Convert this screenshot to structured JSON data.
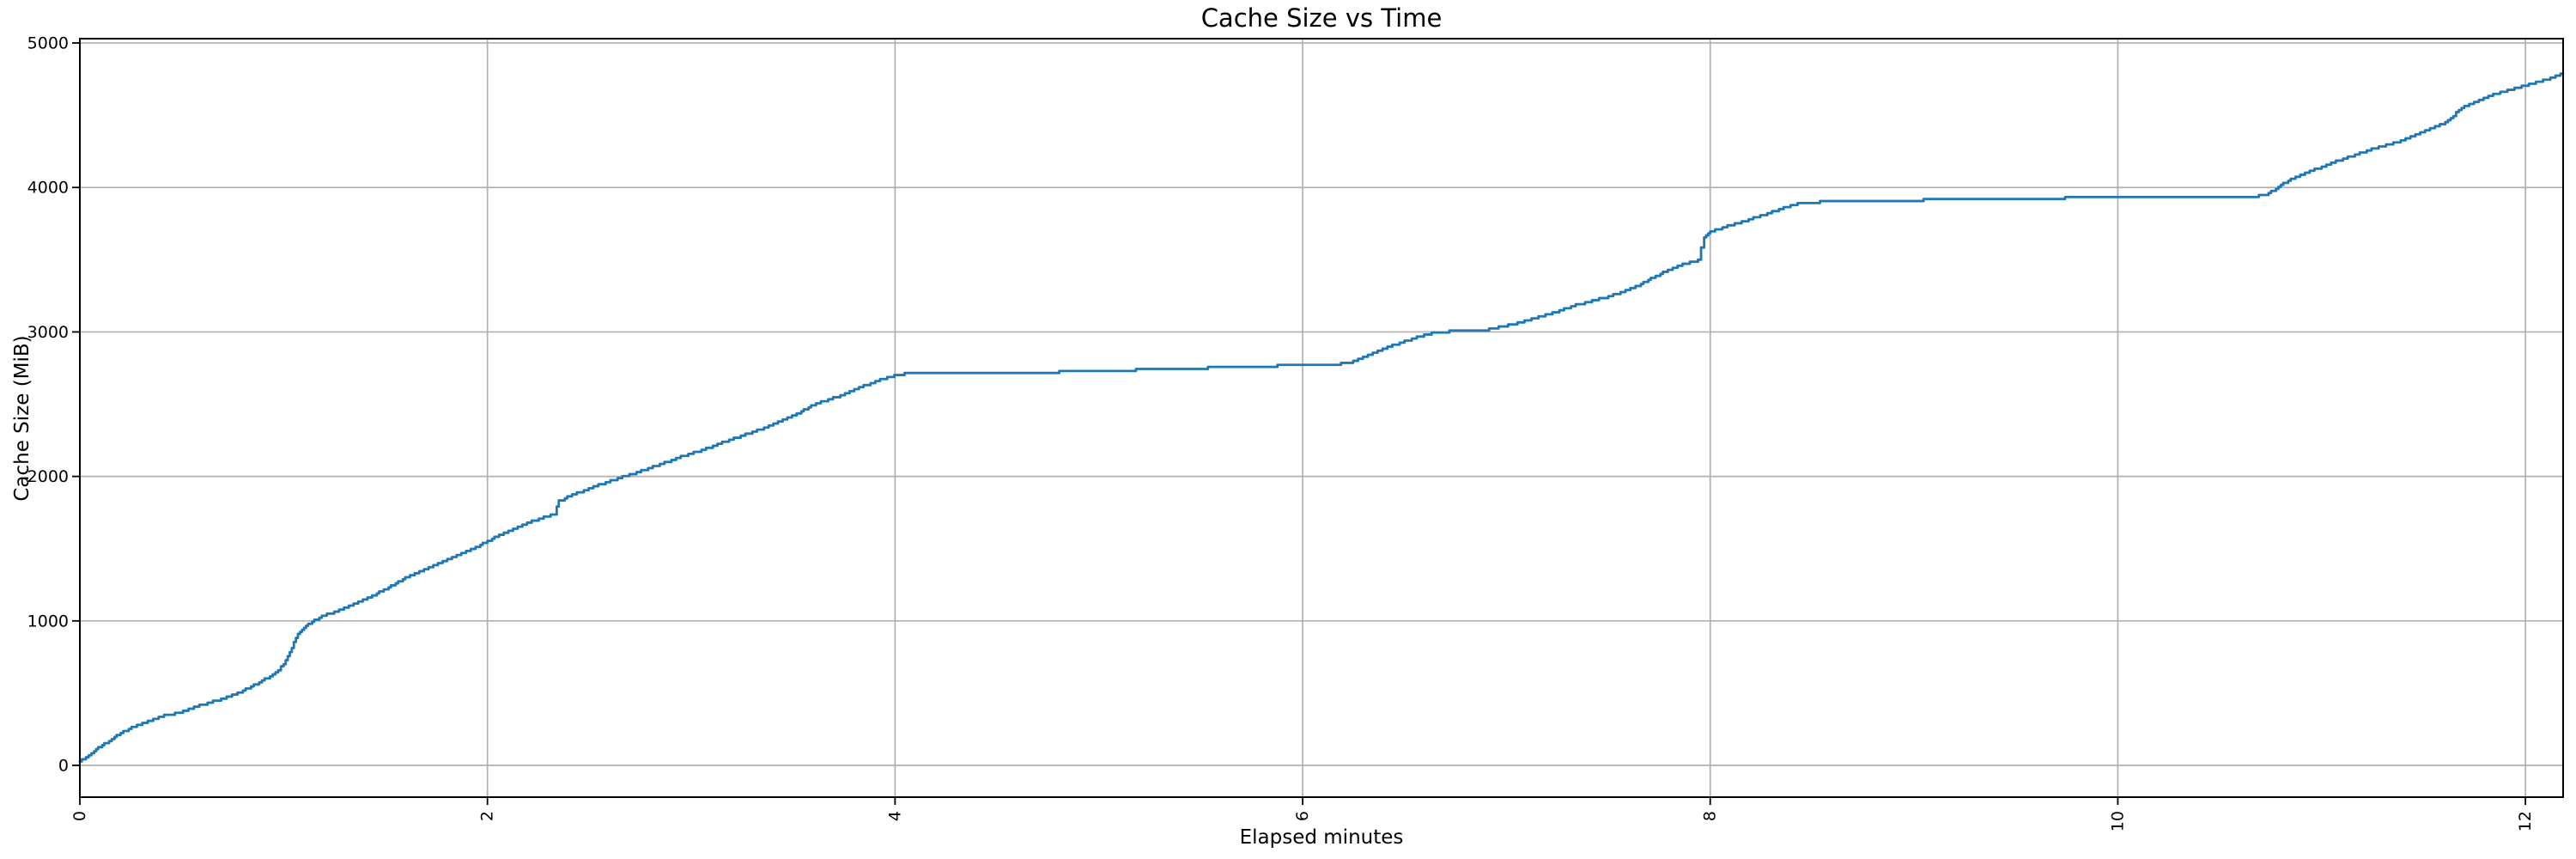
{
  "figure": {
    "background_color": "#ffffff",
    "text_color": "#000000"
  },
  "chart_data": {
    "type": "line",
    "title": "Cache Size vs Time",
    "xlabel": "Elapsed minutes",
    "ylabel": "Cache Size (MiB)",
    "xlim": [
      0,
      12.185
    ],
    "ylim": [
      -220,
      5030
    ],
    "x_ticks": [
      0,
      2,
      4,
      6,
      8,
      10,
      12
    ],
    "y_ticks": [
      0,
      1000,
      2000,
      3000,
      4000,
      5000
    ],
    "x_tick_rotation": 90,
    "grid": true,
    "grid_color": "#b0b0b0",
    "spine_color": "#000000",
    "line_color": "#1f77b4",
    "line_width": 2.8,
    "legend": "none",
    "series": [
      {
        "name": "cache-size-vs-time",
        "points": [
          [
            0.0,
            25
          ],
          [
            0.03,
            60
          ],
          [
            0.07,
            100
          ],
          [
            0.1,
            130
          ],
          [
            0.13,
            160
          ],
          [
            0.17,
            195
          ],
          [
            0.2,
            222
          ],
          [
            0.24,
            250
          ],
          [
            0.28,
            278
          ],
          [
            0.32,
            300
          ],
          [
            0.36,
            322
          ],
          [
            0.4,
            340
          ],
          [
            0.44,
            352
          ],
          [
            0.48,
            360
          ],
          [
            0.52,
            382
          ],
          [
            0.56,
            400
          ],
          [
            0.6,
            420
          ],
          [
            0.64,
            438
          ],
          [
            0.68,
            452
          ],
          [
            0.72,
            470
          ],
          [
            0.76,
            492
          ],
          [
            0.8,
            520
          ],
          [
            0.84,
            548
          ],
          [
            0.88,
            575
          ],
          [
            0.92,
            605
          ],
          [
            0.96,
            640
          ],
          [
            1.0,
            700
          ],
          [
            1.03,
            780
          ],
          [
            1.05,
            850
          ],
          [
            1.07,
            905
          ],
          [
            1.09,
            940
          ],
          [
            1.11,
            962
          ],
          [
            1.13,
            985
          ],
          [
            1.15,
            1005
          ],
          [
            1.2,
            1038
          ],
          [
            1.26,
            1068
          ],
          [
            1.32,
            1105
          ],
          [
            1.4,
            1152
          ],
          [
            1.48,
            1205
          ],
          [
            1.55,
            1262
          ],
          [
            1.62,
            1315
          ],
          [
            1.7,
            1360
          ],
          [
            1.78,
            1412
          ],
          [
            1.86,
            1458
          ],
          [
            1.93,
            1502
          ],
          [
            2.0,
            1552
          ],
          [
            2.08,
            1608
          ],
          [
            2.16,
            1658
          ],
          [
            2.24,
            1700
          ],
          [
            2.3,
            1728
          ],
          [
            2.33,
            1742
          ],
          [
            2.35,
            1830
          ],
          [
            2.38,
            1848
          ],
          [
            2.45,
            1890
          ],
          [
            2.52,
            1930
          ],
          [
            2.58,
            1958
          ],
          [
            2.65,
            1990
          ],
          [
            2.72,
            2022
          ],
          [
            2.8,
            2060
          ],
          [
            2.88,
            2100
          ],
          [
            2.96,
            2142
          ],
          [
            3.05,
            2180
          ],
          [
            3.14,
            2228
          ],
          [
            3.22,
            2268
          ],
          [
            3.3,
            2305
          ],
          [
            3.38,
            2350
          ],
          [
            3.46,
            2400
          ],
          [
            3.54,
            2448
          ],
          [
            3.6,
            2495
          ],
          [
            3.66,
            2525
          ],
          [
            3.72,
            2552
          ],
          [
            3.8,
            2600
          ],
          [
            3.88,
            2645
          ],
          [
            3.95,
            2678
          ],
          [
            4.02,
            2705
          ],
          [
            4.06,
            2712
          ],
          [
            4.3,
            2714
          ],
          [
            4.55,
            2716
          ],
          [
            4.7,
            2720
          ],
          [
            4.9,
            2726
          ],
          [
            5.1,
            2734
          ],
          [
            5.3,
            2742
          ],
          [
            5.5,
            2750
          ],
          [
            5.7,
            2758
          ],
          [
            5.9,
            2766
          ],
          [
            6.05,
            2772
          ],
          [
            6.2,
            2780
          ],
          [
            6.26,
            2800
          ],
          [
            6.32,
            2838
          ],
          [
            6.38,
            2872
          ],
          [
            6.44,
            2905
          ],
          [
            6.5,
            2935
          ],
          [
            6.56,
            2962
          ],
          [
            6.62,
            2985
          ],
          [
            6.66,
            2998
          ],
          [
            6.72,
            3003
          ],
          [
            6.8,
            3006
          ],
          [
            6.88,
            3010
          ],
          [
            6.95,
            3028
          ],
          [
            7.02,
            3050
          ],
          [
            7.1,
            3080
          ],
          [
            7.18,
            3112
          ],
          [
            7.26,
            3148
          ],
          [
            7.34,
            3185
          ],
          [
            7.42,
            3215
          ],
          [
            7.5,
            3245
          ],
          [
            7.56,
            3272
          ],
          [
            7.62,
            3305
          ],
          [
            7.66,
            3330
          ],
          [
            7.72,
            3378
          ],
          [
            7.78,
            3420
          ],
          [
            7.84,
            3458
          ],
          [
            7.9,
            3482
          ],
          [
            7.94,
            3495
          ],
          [
            7.97,
            3660
          ],
          [
            8.0,
            3695
          ],
          [
            8.06,
            3722
          ],
          [
            8.12,
            3748
          ],
          [
            8.2,
            3782
          ],
          [
            8.28,
            3818
          ],
          [
            8.36,
            3858
          ],
          [
            8.44,
            3895
          ],
          [
            8.6,
            3902
          ],
          [
            8.8,
            3907
          ],
          [
            9.0,
            3912
          ],
          [
            9.2,
            3917
          ],
          [
            9.4,
            3921
          ],
          [
            9.6,
            3925
          ],
          [
            9.8,
            3928
          ],
          [
            10.0,
            3931
          ],
          [
            10.2,
            3934
          ],
          [
            10.4,
            3936
          ],
          [
            10.55,
            3937
          ],
          [
            10.68,
            3939
          ],
          [
            10.74,
            3958
          ],
          [
            10.8,
            4020
          ],
          [
            10.86,
            4062
          ],
          [
            10.93,
            4105
          ],
          [
            11.0,
            4143
          ],
          [
            11.07,
            4180
          ],
          [
            11.14,
            4215
          ],
          [
            11.21,
            4248
          ],
          [
            11.28,
            4278
          ],
          [
            11.34,
            4300
          ],
          [
            11.4,
            4330
          ],
          [
            11.46,
            4365
          ],
          [
            11.52,
            4400
          ],
          [
            11.58,
            4435
          ],
          [
            11.62,
            4462
          ],
          [
            11.66,
            4515
          ],
          [
            11.7,
            4562
          ],
          [
            11.76,
            4598
          ],
          [
            11.83,
            4638
          ],
          [
            11.9,
            4668
          ],
          [
            11.97,
            4695
          ],
          [
            12.04,
            4722
          ],
          [
            12.11,
            4752
          ],
          [
            12.185,
            4790
          ]
        ]
      }
    ]
  }
}
